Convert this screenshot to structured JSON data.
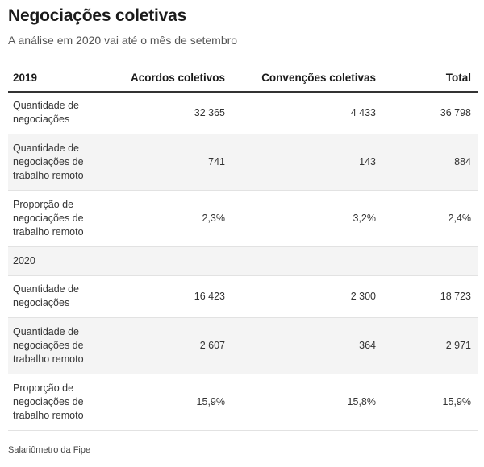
{
  "title": "Negociações coletivas",
  "subtitle": "A análise em 2020 vai até o mês de setembro",
  "source": "Salariômetro da Fipe",
  "chart_data": {
    "type": "table",
    "columns": [
      "2019",
      "Acordos coletivos",
      "Convenções coletivas",
      "Total"
    ],
    "rows": [
      {
        "label": "Quantidade de negociações",
        "values": [
          "32 365",
          "4 433",
          "36 798"
        ]
      },
      {
        "label": "Quantidade de negociações de trabalho remoto",
        "values": [
          "741",
          "143",
          "884"
        ]
      },
      {
        "label": "Proporção de negociações de trabalho remoto",
        "values": [
          "2,3%",
          "3,2%",
          "2,4%"
        ]
      },
      {
        "label": "2020",
        "values": [
          "",
          "",
          ""
        ]
      },
      {
        "label": "Quantidade de negociações",
        "values": [
          "16 423",
          "2 300",
          "18 723"
        ]
      },
      {
        "label": "Quantidade de negociações de trabalho remoto",
        "values": [
          "2 607",
          "364",
          "2 971"
        ]
      },
      {
        "label": "Proporção de negociações de trabalho remoto",
        "values": [
          "15,9%",
          "15,8%",
          "15,9%"
        ]
      }
    ]
  }
}
